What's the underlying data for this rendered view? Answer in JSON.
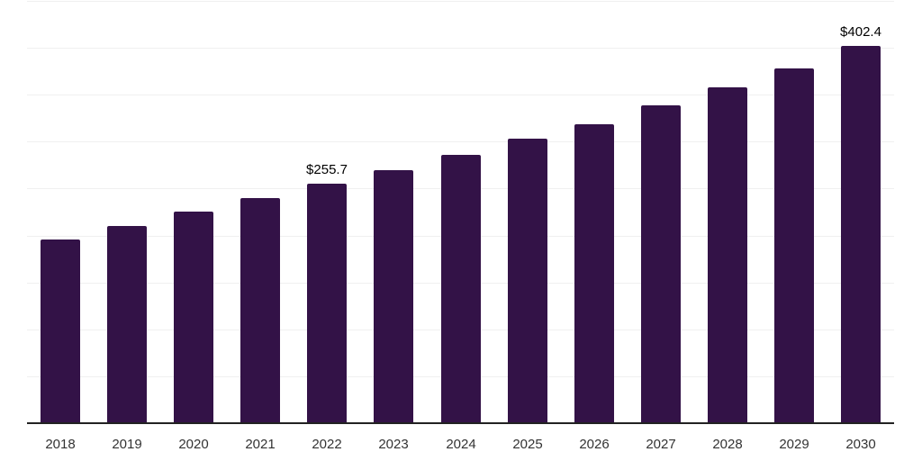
{
  "chart_data": {
    "type": "bar",
    "title": "",
    "xlabel": "",
    "ylabel": "",
    "categories": [
      "2018",
      "2019",
      "2020",
      "2021",
      "2022",
      "2023",
      "2024",
      "2025",
      "2026",
      "2027",
      "2028",
      "2029",
      "2030"
    ],
    "values": [
      196,
      210,
      225,
      240,
      255.7,
      270,
      286,
      303,
      319,
      339,
      357.5,
      378.5,
      402.4
    ],
    "data_labels": {
      "2022": "$255.7",
      "2030": "$402.4"
    },
    "ylim": [
      0,
      450
    ],
    "gridline_step": 50,
    "grid": true,
    "legend": "none",
    "colors": {
      "bar": "#331247",
      "axis_line": "#222222",
      "gridline": "#f0f0f0",
      "tick_label": "#333333",
      "data_label": "#000000",
      "background": "#ffffff"
    }
  }
}
